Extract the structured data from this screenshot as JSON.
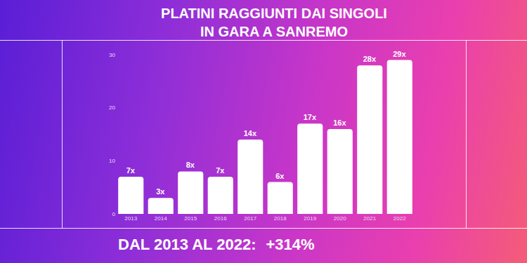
{
  "chart_data": {
    "type": "bar",
    "title": [
      "PLATINI RAGGIUNTI DAI SINGOLI",
      "IN GARA A SANREMO"
    ],
    "categories": [
      "2013",
      "2014",
      "2015",
      "2016",
      "2017",
      "2018",
      "2019",
      "2020",
      "2021",
      "2022"
    ],
    "values": [
      7,
      3,
      8,
      7,
      14,
      6,
      17,
      16,
      28,
      29
    ],
    "value_labels": [
      "7x",
      "3x",
      "8x",
      "7x",
      "14x",
      "6x",
      "17x",
      "16x",
      "28x",
      "29x"
    ],
    "color": "#ffffff",
    "ylim": [
      0,
      30
    ],
    "yticks": [
      0,
      10,
      20,
      30
    ],
    "grid": false,
    "data_labels": true,
    "annotations": [
      "DAL 2013 AL 2022:",
      "+314%"
    ]
  }
}
